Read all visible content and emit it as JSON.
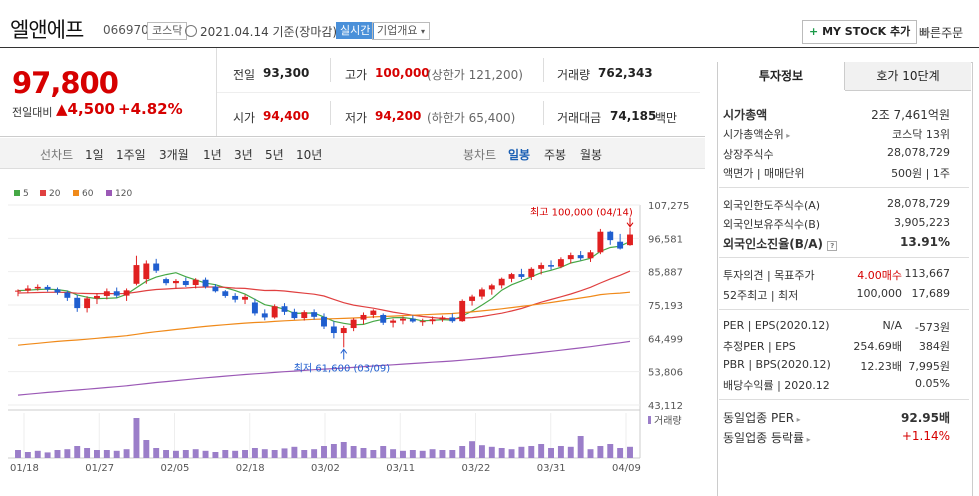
{
  "header": {
    "name": "엘앤에프",
    "code": "066970",
    "market": "코스닥",
    "date": "2021.04.14 기준(장마감)",
    "live": "실시간",
    "corp_info": "기업개요",
    "mystock": "MY STOCK 추가",
    "quick_order": "빠른주문"
  },
  "price": {
    "current": "97,800",
    "prev_label": "전일대비",
    "change": "4,500",
    "pct": "+4.82%"
  },
  "quote": {
    "prev": "93,300",
    "open": "94,400",
    "high": "100,000",
    "upper_limit": "(상한가 121,200)",
    "low": "94,200",
    "lower_limit": "(하한가 65,400)",
    "volume": "762,343",
    "amount": "74,185",
    "amount_unit": "백만",
    "labels": {
      "prev": "전일",
      "open": "시가",
      "high": "고가",
      "low": "저가",
      "volume": "거래량",
      "amount": "거래대금"
    }
  },
  "periods": {
    "line_label": "선차트",
    "items": [
      "1일",
      "1주일",
      "3개월",
      "1년",
      "3년",
      "5년",
      "10년"
    ],
    "candle_label": "봉차트",
    "candles": [
      "일봉",
      "주봉",
      "월봉"
    ],
    "active_candle": "일봉"
  },
  "chart_data": {
    "type": "candlestick",
    "legend": [
      {
        "name": "5",
        "color": "#45a845"
      },
      {
        "name": "20",
        "color": "#e04040"
      },
      {
        "name": "60",
        "color": "#f08a1a"
      },
      {
        "name": "120",
        "color": "#9b59b6"
      }
    ],
    "y_ticks": [
      "107,275",
      "96,581",
      "85,887",
      "75,193",
      "64,499",
      "53,806",
      "43,112"
    ],
    "x_ticks": [
      "01/18",
      "01/27",
      "02/05",
      "02/18",
      "03/02",
      "03/11",
      "03/22",
      "03/31",
      "04/09"
    ],
    "ylim": [
      43112,
      107275
    ],
    "max_label": "최고 100,000 (04/14)",
    "min_label": "최저 61,600 (03/09)",
    "volume_label": "거래량",
    "candles": [
      [
        79500,
        80200,
        78000,
        79800
      ],
      [
        79800,
        81500,
        79000,
        80500
      ],
      [
        80500,
        81800,
        79800,
        81000
      ],
      [
        81000,
        81600,
        79500,
        80200
      ],
      [
        80200,
        80800,
        78500,
        79200
      ],
      [
        79200,
        79800,
        76500,
        77500
      ],
      [
        77500,
        78500,
        73000,
        74200
      ],
      [
        74200,
        78000,
        72800,
        77300
      ],
      [
        77300,
        79000,
        75500,
        78100
      ],
      [
        78100,
        80500,
        77000,
        79600
      ],
      [
        79600,
        80800,
        77500,
        78200
      ],
      [
        78200,
        80500,
        76500,
        79900
      ],
      [
        82000,
        91000,
        81500,
        88000
      ],
      [
        83500,
        89500,
        82000,
        88500
      ],
      [
        88500,
        90000,
        85500,
        86200
      ],
      [
        83500,
        84000,
        81500,
        82200
      ],
      [
        82200,
        83500,
        80500,
        82900
      ],
      [
        82900,
        84000,
        81000,
        81600
      ],
      [
        81600,
        83800,
        80500,
        83300
      ],
      [
        83300,
        84000,
        80500,
        81100
      ],
      [
        81100,
        81900,
        79200,
        79600
      ],
      [
        79600,
        80000,
        77500,
        78100
      ],
      [
        78100,
        79000,
        76000,
        76900
      ],
      [
        76900,
        78500,
        75500,
        77800
      ],
      [
        76000,
        77200,
        71800,
        72500
      ],
      [
        72500,
        73800,
        70300,
        71200
      ],
      [
        71200,
        75400,
        70800,
        74800
      ],
      [
        74800,
        75800,
        72000,
        73000
      ],
      [
        73000,
        74000,
        70500,
        71000
      ],
      [
        71000,
        73500,
        70200,
        72900
      ],
      [
        72900,
        73800,
        70500,
        71400
      ],
      [
        71400,
        72500,
        67500,
        68300
      ],
      [
        68300,
        70000,
        64500,
        66200
      ],
      [
        66200,
        68500,
        61600,
        67800
      ],
      [
        67800,
        71000,
        66800,
        70500
      ],
      [
        70500,
        72800,
        69000,
        72000
      ],
      [
        72000,
        73800,
        71000,
        73400
      ],
      [
        72000,
        72500,
        68800,
        69500
      ],
      [
        69500,
        70800,
        68000,
        70200
      ],
      [
        70200,
        71500,
        69000,
        70800
      ],
      [
        70800,
        71900,
        69500,
        69900
      ],
      [
        69900,
        70800,
        68500,
        70000
      ],
      [
        70000,
        71500,
        69000,
        70600
      ],
      [
        70600,
        71800,
        69800,
        71200
      ],
      [
        71200,
        72500,
        69500,
        70000
      ],
      [
        70000,
        77000,
        69800,
        76500
      ],
      [
        76500,
        78500,
        75000,
        77900
      ],
      [
        77900,
        80800,
        77000,
        80200
      ],
      [
        80200,
        82000,
        78500,
        81500
      ],
      [
        81500,
        84000,
        80500,
        83600
      ],
      [
        83600,
        85500,
        82500,
        85100
      ],
      [
        85100,
        86800,
        83500,
        84200
      ],
      [
        84200,
        87300,
        83200,
        86800
      ],
      [
        86800,
        88800,
        85000,
        88000
      ],
      [
        88000,
        89500,
        86500,
        87500
      ],
      [
        87500,
        90500,
        87000,
        89900
      ],
      [
        89900,
        92000,
        88500,
        91200
      ],
      [
        91200,
        92500,
        89500,
        90200
      ],
      [
        90200,
        92800,
        89000,
        92100
      ],
      [
        92100,
        99600,
        91500,
        98700
      ],
      [
        98700,
        99000,
        94500,
        96000
      ],
      [
        95500,
        98000,
        93000,
        93300
      ],
      [
        94400,
        100000,
        94200,
        97800
      ]
    ],
    "volumes": [
      0.2,
      0.15,
      0.18,
      0.14,
      0.2,
      0.22,
      0.3,
      0.25,
      0.2,
      0.2,
      0.18,
      0.22,
      1.0,
      0.45,
      0.25,
      0.2,
      0.18,
      0.2,
      0.22,
      0.18,
      0.15,
      0.2,
      0.18,
      0.2,
      0.25,
      0.22,
      0.2,
      0.24,
      0.28,
      0.2,
      0.22,
      0.3,
      0.35,
      0.4,
      0.3,
      0.25,
      0.2,
      0.3,
      0.22,
      0.18,
      0.2,
      0.18,
      0.22,
      0.2,
      0.2,
      0.3,
      0.42,
      0.32,
      0.28,
      0.25,
      0.22,
      0.28,
      0.3,
      0.35,
      0.25,
      0.3,
      0.28,
      0.55,
      0.22,
      0.3,
      0.35,
      0.25,
      0.28
    ]
  },
  "right": {
    "tabs": [
      "투자정보",
      "호가 10단계"
    ],
    "market_cap_label": "시가총액",
    "market_cap": "2조 7,461억원",
    "rank_label": "시가총액순위",
    "rank": "코스닥 13위",
    "shares_label": "상장주식수",
    "shares": "28,078,729",
    "par_label": "액면가 | 매매단위",
    "par": "500원 | 1주",
    "foreign_limit_label": "외국인한도주식수(A)",
    "foreign_limit": "28,078,729",
    "foreign_hold_label": "외국인보유주식수(B)",
    "foreign_hold": "3,905,223",
    "foreign_rate_label": "외국인소진율(B/A)",
    "foreign_rate": "13.91%",
    "opinion_label": "투자의견 | 목표주가",
    "opinion": "4.00매수",
    "target": "113,667",
    "w52_label": "52주최고 | 최저",
    "w52_high": "100,000",
    "w52_low": "17,689",
    "per_label": "PER | EPS(2020.12)",
    "per": "N/A",
    "eps": "-573원",
    "eper_label": "추정PER | EPS",
    "eper": "254.69배",
    "eeps": "384원",
    "pbr_label": "PBR | BPS(2020.12)",
    "pbr": "12.23배",
    "bps": "7,995원",
    "div_label": "배당수익률 | 2020.12",
    "div": "0.05%",
    "sector_per_label": "동일업종 PER",
    "sector_per": "92.95배",
    "sector_chg_label": "동일업종 등락률",
    "sector_chg": "+1.14%"
  }
}
